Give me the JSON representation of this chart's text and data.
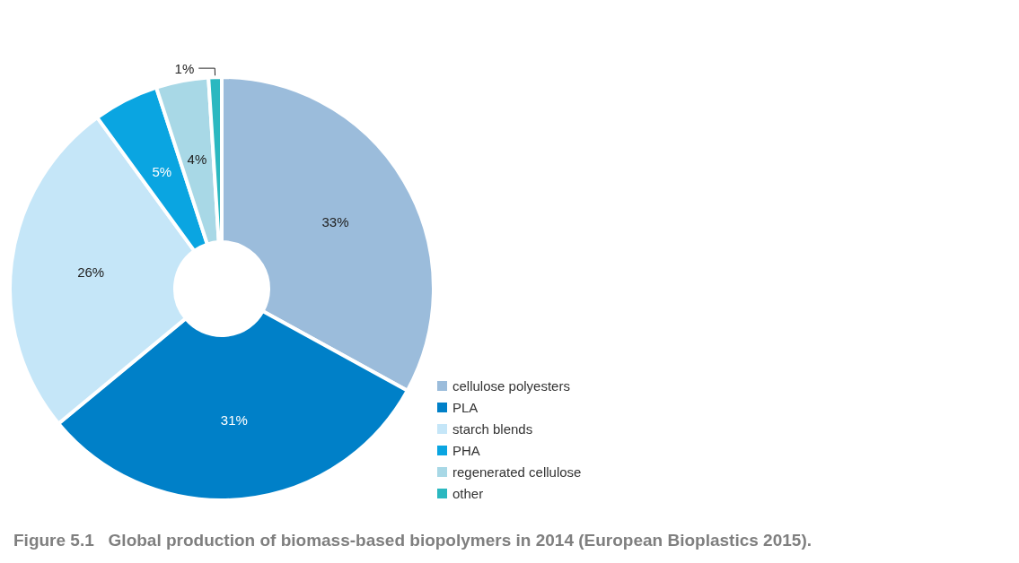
{
  "chart_data": {
    "type": "donut",
    "title": "Figure 5.1   Global production of biomass-based biopolymers in 2014 (European Bioplastics 2015).",
    "categories": [
      "cellulose polyesters",
      "PLA",
      "starch blends",
      "PHA",
      "regenerated cellulose",
      "other"
    ],
    "values": [
      33,
      31,
      26,
      5,
      4,
      1
    ],
    "value_labels": [
      "33%",
      "31%",
      "26%",
      "5%",
      "4%",
      "1%"
    ],
    "colors": [
      "#9bbcdb",
      "#0080c8",
      "#c5e6f8",
      "#0aa5e1",
      "#a8d8e6",
      "#2bb8c0"
    ],
    "legend": "bottom right"
  }
}
